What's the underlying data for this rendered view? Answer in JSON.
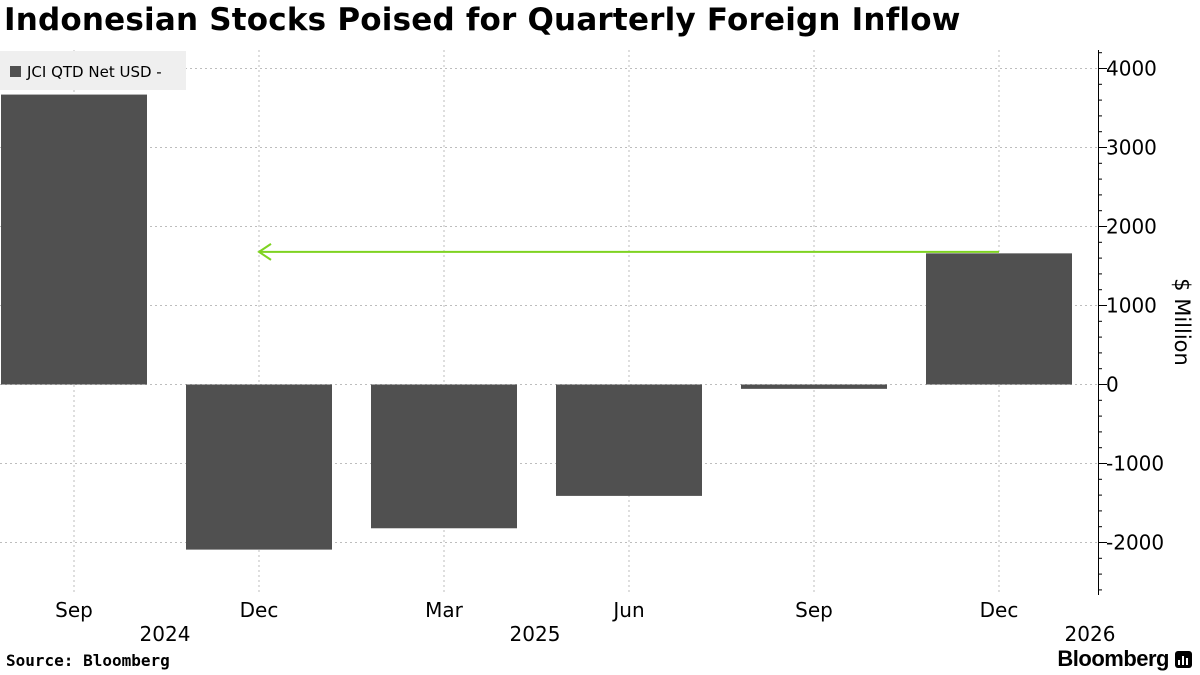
{
  "title": "Indonesian Stocks Poised for Quarterly Foreign Inflow",
  "source": "Source: Bloomberg",
  "brand": "Bloomberg",
  "brand_icon": "bar-chart-icon",
  "colors": {
    "bar": "#505050",
    "arrow": "#7ed321",
    "grid": "#bdbdbd",
    "legend_bg": "#efefef"
  },
  "chart_data": {
    "type": "bar",
    "title": "Indonesian Stocks Poised for Quarterly Foreign Inflow",
    "categories": [
      "Sep",
      "Dec",
      "Mar",
      "Jun",
      "Sep",
      "Dec"
    ],
    "years": [
      "2024",
      "",
      "2025",
      "",
      "",
      "2026"
    ],
    "series": [
      {
        "name": "JCI QTD Net USD -",
        "values": [
          3670,
          -2090,
          -1820,
          -1410,
          -55,
          1660
        ]
      }
    ],
    "ylabel": "$ Million",
    "ylim": [
      -2600,
      4200
    ],
    "yticks": [
      4000,
      3000,
      2000,
      1000,
      0,
      -1000,
      -2000
    ],
    "ytick_labels": [
      "4000",
      "3000",
      "2000",
      "1000",
      "0",
      "-1000",
      "-2000"
    ],
    "y_axis_position": "right",
    "legend_position": "top-left",
    "grid": true,
    "annotation": {
      "type": "arrow",
      "value": 1660,
      "from_category_index": 5,
      "to_category_index": 1,
      "color": "#7ed321"
    }
  }
}
